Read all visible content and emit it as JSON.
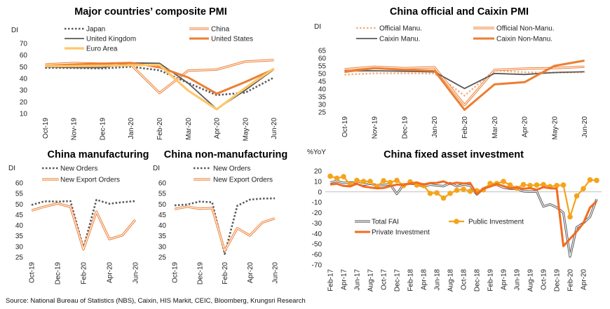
{
  "source_note": "Source: National Bureau of Statistics (NBS), Caixin, HIS Markit, CEIC, Bloomberg, Krungsri Research",
  "colors": {
    "japan": "#595959",
    "china": "#ED7D31",
    "uk": "#595959",
    "us": "#ED7D31",
    "euro": "#FFC76A",
    "official_manu": "#F4B183",
    "public": "#F5A31A",
    "private": "#F26B21",
    "total": "#595959"
  },
  "chart_data": [
    {
      "id": "pmi",
      "type": "line",
      "title": "Major countries’ composite PMI",
      "ylabel": "DI",
      "ylim": [
        10,
        70
      ],
      "yticks": [
        10,
        20,
        30,
        40,
        50,
        60,
        70
      ],
      "categories": [
        "Oct-19",
        "Nov-19",
        "Dec-19",
        "Jan-20",
        "Feb-20",
        "Mar-20",
        "Apr-20",
        "May-20",
        "Jun-20"
      ],
      "legend": [
        "Japan",
        "China",
        "United Kingdom",
        "United States",
        "Euro Area"
      ],
      "series": [
        {
          "name": "Japan",
          "values": [
            49.1,
            49.0,
            48.6,
            50.1,
            47.0,
            36.2,
            25.8,
            27.8,
            40.8
          ]
        },
        {
          "name": "China",
          "values": [
            52.0,
            53.2,
            52.6,
            51.9,
            27.5,
            46.7,
            47.6,
            54.5,
            55.7
          ]
        },
        {
          "name": "United Kingdom",
          "values": [
            50.0,
            49.3,
            49.3,
            53.3,
            53.0,
            36.0,
            13.8,
            30.0,
            47.7
          ]
        },
        {
          "name": "United States",
          "values": [
            50.9,
            52.0,
            52.7,
            53.3,
            49.6,
            40.9,
            27.0,
            37.0,
            47.9
          ]
        },
        {
          "name": "Euro Area",
          "values": [
            50.6,
            50.6,
            50.9,
            51.3,
            51.6,
            29.7,
            13.6,
            31.9,
            48.5
          ]
        }
      ]
    },
    {
      "id": "cn_pmi",
      "type": "line",
      "title": "China official and Caixin PMI",
      "ylabel": "DI",
      "ylim": [
        25,
        65
      ],
      "yticks": [
        25,
        30,
        35,
        40,
        45,
        50,
        55,
        60,
        65
      ],
      "categories": [
        "Oct-19",
        "Nov-19",
        "Dec-19",
        "Jan-20",
        "Feb-20",
        "Mar-20",
        "Apr-20",
        "May-20",
        "Jun-20"
      ],
      "legend": [
        "Official Manu.",
        "Official Non-Manu.",
        "Caixin Manu.",
        "Caixin Non-Manu."
      ],
      "series": [
        {
          "name": "Official Manu.",
          "values": [
            49.3,
            50.2,
            50.2,
            50.0,
            35.7,
            52.0,
            50.8,
            50.6,
            50.9
          ]
        },
        {
          "name": "Official Non-Manu.",
          "values": [
            52.8,
            54.4,
            53.5,
            54.1,
            29.6,
            52.3,
            53.2,
            53.6,
            54.4
          ]
        },
        {
          "name": "Caixin Manu.",
          "values": [
            51.7,
            51.8,
            51.5,
            51.1,
            40.3,
            50.1,
            49.4,
            50.7,
            51.2
          ]
        },
        {
          "name": "Caixin Non-Manu.",
          "values": [
            51.1,
            53.5,
            52.5,
            51.8,
            26.5,
            43.0,
            44.4,
            55.0,
            58.4
          ]
        }
      ]
    },
    {
      "id": "cn_manu",
      "type": "line",
      "title": "China manufacturing",
      "ylabel": "DI",
      "ylim": [
        25,
        60
      ],
      "yticks": [
        25,
        30,
        35,
        40,
        45,
        50,
        55,
        60
      ],
      "categories": [
        "Oct-19",
        "Nov-19",
        "Dec-19",
        "Jan-20",
        "Feb-20",
        "Mar-20",
        "Apr-20",
        "May-20",
        "Jun-20"
      ],
      "xtick_labels": [
        "Oct-19",
        "Dec-19",
        "Feb-20",
        "Apr-20",
        "Jun-20"
      ],
      "legend": [
        "New Orders",
        "New Export Orders"
      ],
      "series": [
        {
          "name": "New Orders",
          "values": [
            49.6,
            51.3,
            51.2,
            51.4,
            29.3,
            52.0,
            50.2,
            50.9,
            51.4
          ]
        },
        {
          "name": "New Export Orders",
          "values": [
            47.0,
            48.8,
            50.3,
            48.7,
            28.7,
            46.4,
            33.5,
            35.3,
            42.6
          ]
        }
      ]
    },
    {
      "id": "cn_nonmanu",
      "type": "line",
      "title": "China non-manufacturing",
      "ylabel": "DI",
      "ylim": [
        25,
        60
      ],
      "yticks": [
        25,
        30,
        35,
        40,
        45,
        50,
        55,
        60
      ],
      "categories": [
        "Oct-19",
        "Nov-19",
        "Dec-19",
        "Jan-20",
        "Feb-20",
        "Mar-20",
        "Apr-20",
        "May-20",
        "Jun-20"
      ],
      "xtick_labels": [
        "Oct-19",
        "Dec-19",
        "Feb-20",
        "Apr-20",
        "Jun-20"
      ],
      "legend": [
        "New Orders",
        "New Export Orders"
      ],
      "series": [
        {
          "name": "New Orders",
          "values": [
            49.4,
            49.8,
            51.2,
            50.9,
            26.5,
            49.2,
            52.1,
            52.6,
            52.7
          ]
        },
        {
          "name": "New Export Orders",
          "values": [
            47.7,
            48.8,
            47.8,
            48.1,
            28.0,
            38.6,
            35.2,
            41.3,
            43.3
          ]
        }
      ]
    },
    {
      "id": "fai",
      "type": "line",
      "title": "China fixed asset investment",
      "ylabel": "%YoY",
      "ylim": [
        -70,
        20
      ],
      "yticks": [
        -70,
        -60,
        -50,
        -40,
        -30,
        -20,
        -10,
        0,
        10,
        20
      ],
      "categories": [
        "Feb-17",
        "Mar-17",
        "Apr-17",
        "May-17",
        "Jun-17",
        "Jul-17",
        "Aug-17",
        "Sep-17",
        "Oct-17",
        "Nov-17",
        "Dec-17",
        "Jan-18",
        "Feb-18",
        "Mar-18",
        "Apr-18",
        "May-18",
        "Jun-18",
        "Jul-18",
        "Aug-18",
        "Sep-18",
        "Oct-18",
        "Nov-18",
        "Dec-18",
        "Jan-19",
        "Feb-19",
        "Mar-19",
        "Apr-19",
        "May-19",
        "Jun-19",
        "Jul-19",
        "Aug-19",
        "Sep-19",
        "Oct-19",
        "Nov-19",
        "Dec-19",
        "Jan-20",
        "Feb-20",
        "Mar-20",
        "Apr-20",
        "May-20",
        "Jun-20"
      ],
      "xtick_labels": [
        "Feb-17",
        "Apr-17",
        "Jun-17",
        "Aug-17",
        "Oct-17",
        "Dec-17",
        "Feb-18",
        "Apr-18",
        "Jun-18",
        "Aug-18",
        "Oct-18",
        "Dec-18",
        "Feb-19",
        "Apr-19",
        "Jun-19",
        "Aug-19",
        "Oct-19",
        "Dec-19",
        "Feb-20",
        "Apr-20"
      ],
      "legend": [
        "Total FAI",
        "Public Investment",
        "Private Investment"
      ],
      "series": [
        {
          "name": "Total FAI",
          "values": [
            8.9,
            10.3,
            8.6,
            9.0,
            8.9,
            6.9,
            7.8,
            6.4,
            6.5,
            7.2,
            -2.0,
            7.0,
            7.9,
            7.5,
            4.9,
            7.0,
            6.1,
            5.5,
            8.3,
            5.4,
            7.0,
            6.0,
            -2.5,
            3.0,
            6.3,
            6.7,
            4.0,
            3.0,
            3.0,
            0.5,
            0.2,
            0.4,
            -14.0,
            -12.0,
            -15.0,
            -20.0,
            -62.0,
            -34.0,
            -30.0,
            -24.0,
            -7.0
          ]
        },
        {
          "name": "Public Investment",
          "values": [
            15.0,
            13.0,
            14.5,
            7.0,
            11.0,
            10.0,
            10.0,
            5.0,
            10.5,
            9.0,
            11.0,
            6.0,
            9.5,
            6.5,
            6.0,
            -1.5,
            -1.0,
            -6.0,
            -1.5,
            1.5,
            2.5,
            0.5,
            1.0,
            2.0,
            8.0,
            8.0,
            10.0,
            6.5,
            3.5,
            7.0,
            6.0,
            6.5,
            7.0,
            5.0,
            6.0,
            6.5,
            -24.0,
            -4.0,
            3.0,
            11.5,
            11.0
          ]
        },
        {
          "name": "Private Investment",
          "values": [
            7.0,
            7.7,
            5.7,
            5.2,
            7.7,
            5.0,
            4.2,
            3.4,
            3.7,
            5.4,
            7.0,
            6.5,
            8.0,
            9.0,
            7.0,
            8.5,
            8.6,
            10.0,
            7.5,
            8.8,
            8.0,
            8.5,
            -2.0,
            3.0,
            5.0,
            7.5,
            5.5,
            3.5,
            4.0,
            3.0,
            3.5,
            2.0,
            4.5,
            3.5,
            3.0,
            -52.0,
            -45.0,
            -38.0,
            -30.0,
            -15.0,
            -9.0
          ]
        }
      ]
    }
  ]
}
